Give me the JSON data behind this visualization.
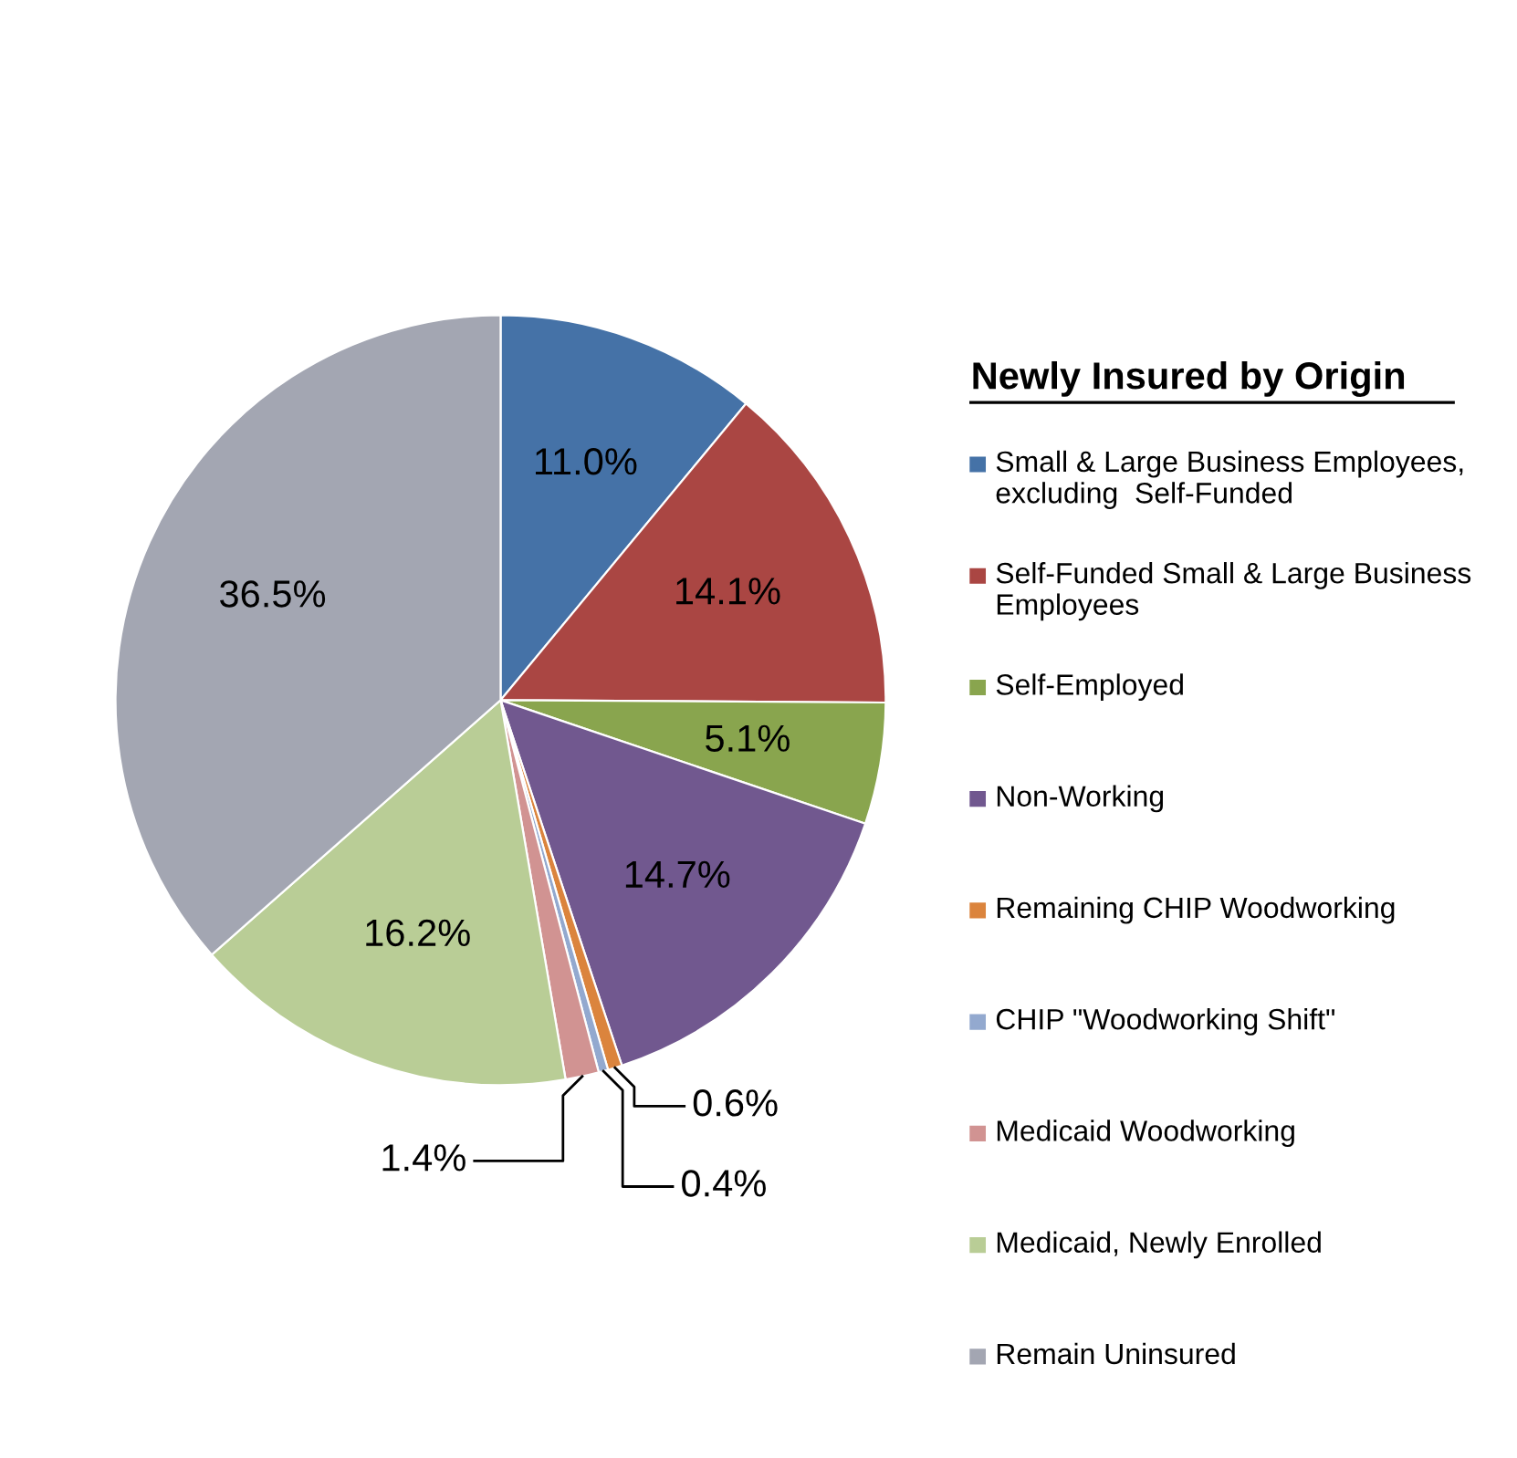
{
  "chart_data": {
    "type": "pie",
    "legend_title": "Newly Insured by Origin",
    "categories": [
      "Small & Large Business Employees, excluding  Self-Funded",
      "Self-Funded Small & Large Business Employees",
      "Self-Employed",
      "Non-Working",
      "Remaining CHIP Woodworking",
      "CHIP \"Woodworking Shift\"",
      "Medicaid Woodworking",
      "Medicaid, Newly Enrolled",
      "Remain Uninsured"
    ],
    "values": [
      11.0,
      14.1,
      5.1,
      14.7,
      0.6,
      0.4,
      1.4,
      16.2,
      36.5
    ],
    "value_labels": [
      "11.0%",
      "14.1%",
      "5.1%",
      "14.7%",
      "0.6%",
      "0.4%",
      "1.4%",
      "16.2%",
      "36.5%"
    ],
    "colors": [
      "#4572a7",
      "#aa4643",
      "#89a54e",
      "#71588f",
      "#db843d",
      "#93a9cf",
      "#d19392",
      "#b9cd96",
      "#a3a6b2"
    ],
    "legend": "right"
  }
}
